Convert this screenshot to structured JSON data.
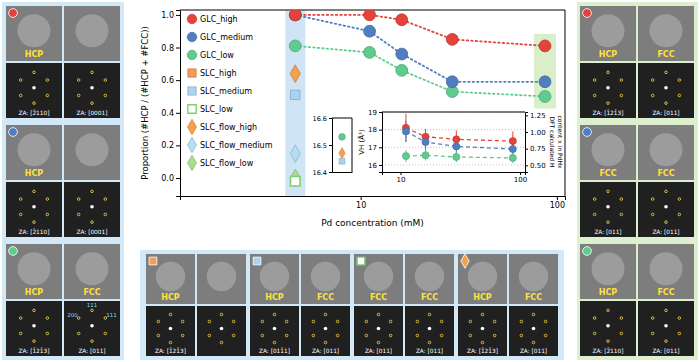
{
  "chart_data": [
    {
      "type": "line",
      "x_label": "Pd concentration (mM)",
      "y_label": "Proportion (#HCP / (#HCP + #FCC))",
      "log": "x",
      "xlim": [
        1.2,
        110
      ],
      "xticks": [
        10,
        100
      ],
      "ylim": [
        -0.11,
        1.03
      ],
      "yticks": [
        {
          "value": 0,
          "label": "0.0"
        },
        {
          "value": 0.2,
          "label": "0.2"
        },
        {
          "value": 0.4,
          "label": "0.4"
        },
        {
          "value": 0.6,
          "label": "0.6"
        },
        {
          "value": 0.8,
          "label": "0.8"
        },
        {
          "value": 1.0,
          "label": "1.0"
        }
      ],
      "legend": "upper left",
      "x": [
        4.64,
        11.1,
        16.2,
        29.3,
        87
      ],
      "series": [
        {
          "name": "GLC_high",
          "color": "#e5423a",
          "marker": "circle",
          "line_style": "dotted",
          "values": [
            1.0,
            1.0,
            0.97,
            0.85,
            0.81
          ]
        },
        {
          "name": "GLC_medium",
          "color": "#4f7fc0",
          "marker": "circle",
          "line_style": "dotted",
          "values": [
            1.0,
            0.9,
            0.76,
            0.59,
            0.59
          ]
        },
        {
          "name": "GLC_low",
          "color": "#5fcc8e",
          "marker": "circle",
          "line_style": "dotted",
          "values": [
            0.81,
            0.77,
            0.66,
            0.53,
            0.5
          ]
        },
        {
          "name": "SLC_high",
          "type": "scatter",
          "color": "#f49a5a",
          "marker": "square",
          "values": [
            1.0,
            null,
            null,
            null,
            null
          ]
        },
        {
          "name": "SLC_medium",
          "type": "scatter",
          "color": "#a9d3f0",
          "marker": "square",
          "values": [
            0.51,
            null,
            null,
            null,
            null
          ]
        },
        {
          "name": "SLC_low",
          "type": "scatter",
          "color": "#7fcf72",
          "marker": "square-open",
          "values": [
            -0.02,
            null,
            null,
            null,
            null
          ]
        },
        {
          "name": "SLC_flow_high",
          "type": "scatter",
          "color": "#f7a04c",
          "marker": "diamond",
          "values": [
            0.64,
            null,
            null,
            null,
            null
          ]
        },
        {
          "name": "SLC_flow_medium",
          "type": "scatter",
          "color": "#b5dcf5",
          "marker": "diamond",
          "values": [
            0.15,
            null,
            null,
            null,
            null
          ]
        },
        {
          "name": "SLC_flow_low",
          "type": "scatter",
          "color": "#a6e08f",
          "marker": "diamond",
          "values": [
            0.0,
            null,
            null,
            null,
            null
          ]
        }
      ]
    },
    {
      "type": "line",
      "y_label": "VH (Å³)",
      "y2_label": [
        "DFT calculated H",
        "content x in PdHx"
      ],
      "log": "x",
      "xlim": [
        7,
        110
      ],
      "xticks": [
        10,
        100
      ],
      "ylim": [
        15.6,
        19.0
      ],
      "yticks": [
        16,
        17,
        18,
        19
      ],
      "y2lim": [
        0.4,
        1.3
      ],
      "y2ticks": [
        {
          "value": 0.5,
          "label": "0.50"
        },
        {
          "value": 0.75,
          "label": "0.75"
        },
        {
          "value": 1.0,
          "label": "1.00"
        },
        {
          "value": 1.25,
          "label": "1.25"
        }
      ],
      "grid": true,
      "x": [
        11.1,
        16.2,
        29.3,
        87
      ],
      "series": [
        {
          "name": "GLC_high",
          "color": "#e5423a",
          "marker": "circle",
          "line_style": "dashed",
          "values": [
            18.1,
            17.6,
            17.45,
            17.35
          ],
          "errors": [
            0.8,
            0.45,
            0.5,
            0.55
          ]
        },
        {
          "name": "GLC_medium",
          "color": "#4f7fc0",
          "marker": "circle",
          "line_style": "dashed",
          "values": [
            17.9,
            17.3,
            17.05,
            16.9
          ],
          "errors": [
            0.6,
            0.5,
            0.45,
            0.5
          ]
        },
        {
          "name": "GLC_low",
          "color": "#5fcc8e",
          "marker": "circle",
          "line_style": "dashed",
          "values": [
            16.5,
            16.55,
            16.45,
            16.4
          ],
          "errors": [
            0.35,
            0.3,
            0.3,
            0.3
          ]
        }
      ]
    },
    {
      "type": "scatter",
      "categories": [
        null
      ],
      "tick_labels": "y",
      "ylim": [
        16.4,
        16.6
      ],
      "yticks": [
        16.4,
        16.5,
        16.6
      ],
      "series": [
        {
          "name": "GLC_low",
          "color": "#5fcc8e",
          "marker": "circle",
          "values": [
            16.53
          ]
        },
        {
          "name": "SLC_flow_high",
          "color": "#f7a04c",
          "marker": "diamond",
          "values": [
            16.47
          ]
        },
        {
          "name": "SLC_medium",
          "color": "#a9d3f0",
          "marker": "square",
          "values": [
            16.44
          ]
        }
      ]
    }
  ],
  "panels": {
    "left": [
      {
        "sample": "GLC_high",
        "images": [
          {
            "phase": "HCP",
            "za": "ZA: [2̄110]"
          },
          {
            "phase": null,
            "za": "ZA: [0001]"
          }
        ]
      },
      {
        "sample": "GLC_medium",
        "images": [
          {
            "phase": "HCP",
            "za": "ZA: [2̄110]"
          },
          {
            "phase": null,
            "za": "ZA: [0001]"
          }
        ]
      },
      {
        "sample": "GLC_low",
        "images": [
          {
            "phase": "HCP",
            "za": "ZA: [1̄21̄3]"
          },
          {
            "phase": "FCC",
            "za": "ZA: [011]",
            "spots": [
              "111",
              "111",
              "200"
            ]
          }
        ]
      }
    ],
    "bottom": [
      {
        "sample": "SLC_high",
        "images": [
          {
            "phase": "HCP",
            "za": "ZA: [1̄21̄3]"
          },
          {
            "phase": null,
            "za": null
          }
        ]
      },
      {
        "sample": "SLC_medium",
        "images": [
          {
            "phase": "HCP",
            "za": "ZA: [011̄1]"
          },
          {
            "phase": "FCC",
            "za": "ZA: [011]"
          }
        ]
      },
      {
        "sample": "SLC_low",
        "images": [
          {
            "phase": "FCC",
            "za": "ZA: [011]"
          },
          {
            "phase": "FCC",
            "za": "ZA: [011]"
          }
        ]
      },
      {
        "sample": "SLC_flow_high",
        "images": [
          {
            "phase": "HCP",
            "za": "ZA: [1̄21̄3]"
          },
          {
            "phase": "FCC",
            "za": "ZA: [011]"
          }
        ]
      }
    ],
    "right": [
      {
        "sample": "GLC_high",
        "images": [
          {
            "phase": "HCP",
            "za": "ZA: [1̄21̄3]"
          },
          {
            "phase": "FCC",
            "za": "ZA: [011]"
          }
        ]
      },
      {
        "sample": "GLC_medium",
        "images": [
          {
            "phase": "FCC",
            "za": "ZA: [011]"
          },
          {
            "phase": "FCC",
            "za": "ZA: [011]"
          }
        ]
      },
      {
        "sample": "GLC_low",
        "images": [
          {
            "phase": "HCP",
            "za": "ZA: [2̄110]"
          },
          {
            "phase": "FCC",
            "za": "ZA: [011]"
          }
        ]
      }
    ]
  }
}
